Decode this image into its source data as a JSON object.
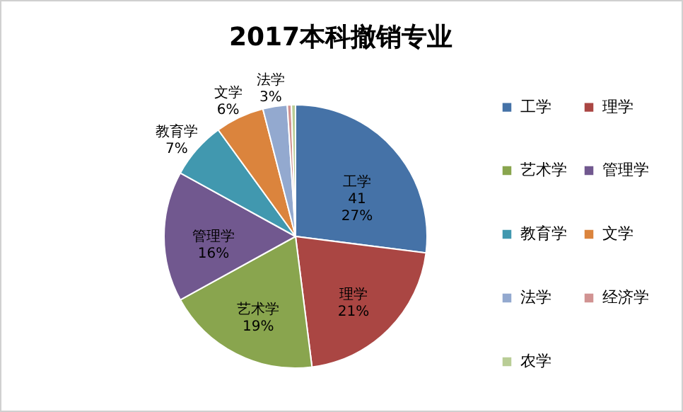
{
  "chart_data": {
    "type": "pie",
    "title": "2017本科撤销专业",
    "categories": [
      "工学",
      "理学",
      "艺术学",
      "管理学",
      "教育学",
      "文学",
      "法学",
      "经济学",
      "农学"
    ],
    "values": [
      27,
      21,
      19,
      16,
      7,
      6,
      3,
      0.5,
      0.5
    ],
    "value_labels": [
      "41\n27%",
      "21%",
      "19%",
      "16%",
      "7%",
      "6%",
      "3%",
      null,
      null
    ],
    "colors": [
      "#4572a7",
      "#aa4643",
      "#89a54e",
      "#71588f",
      "#4198af",
      "#db843d",
      "#93a9cf",
      "#d19392",
      "#b9cd96"
    ],
    "legend": "right"
  }
}
